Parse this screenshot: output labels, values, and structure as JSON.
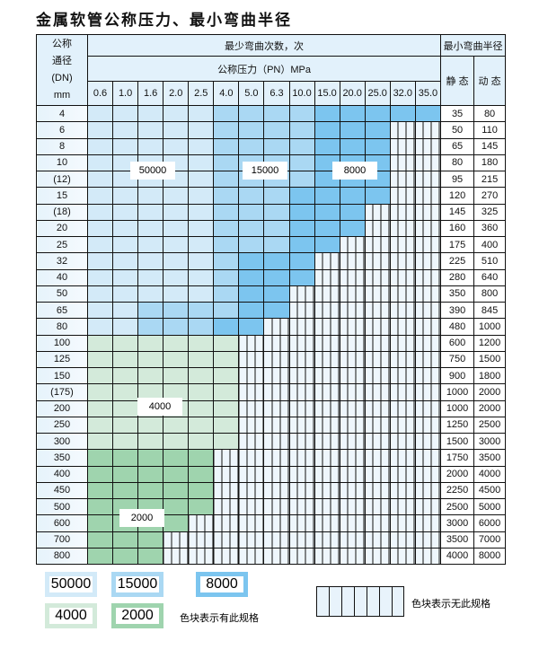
{
  "title": "金属软管公称压力、最小弯曲半径",
  "header": {
    "dn_label": [
      "公称",
      "通径",
      "(DN)",
      "mm"
    ],
    "cycles_label": "最少弯曲次数，次",
    "pressure_label": "公称压力（PN）MPa",
    "radius_label": "最小弯曲半径",
    "static_label": "静 态",
    "dynamic_label": "动 态",
    "pressures": [
      "0.6",
      "1.0",
      "1.6",
      "2.0",
      "2.5",
      "4.0",
      "5.0",
      "6.3",
      "10.0",
      "15.0",
      "20.0",
      "25.0",
      "32.0",
      "35.0"
    ]
  },
  "colors": {
    "A": "#d3eaf8",
    "B": "#aad8f3",
    "C": "#7cc5ef",
    "D": "#d3eada",
    "E": "#9fd4ae"
  },
  "cycle_codes": {
    "A": "50000",
    "B": "15000",
    "C": "8000",
    "D": "4000",
    "E": "2000",
    "X": "无此规格"
  },
  "rows": [
    {
      "dn": "4",
      "cells": "AAAAABBBBCCCCC",
      "static": "35",
      "dynamic": "80"
    },
    {
      "dn": "6",
      "cells": "AAAAABBBBCCCXX",
      "static": "50",
      "dynamic": "110"
    },
    {
      "dn": "8",
      "cells": "AAAAABBBBCCCXX",
      "static": "65",
      "dynamic": "145"
    },
    {
      "dn": "10",
      "cells": "AAAAABBBBCCCXX",
      "static": "80",
      "dynamic": "180"
    },
    {
      "dn": "(12)",
      "cells": "AAAAABBBBCCCXX",
      "static": "95",
      "dynamic": "215"
    },
    {
      "dn": "15",
      "cells": "AAAAABBBCCCCXX",
      "static": "120",
      "dynamic": "270"
    },
    {
      "dn": "(18)",
      "cells": "AAAAABBBCCCXXX",
      "static": "145",
      "dynamic": "325"
    },
    {
      "dn": "20",
      "cells": "AAAAABBBCCCXXX",
      "static": "160",
      "dynamic": "360"
    },
    {
      "dn": "25",
      "cells": "AAAAABBBCCXXXX",
      "static": "175",
      "dynamic": "400"
    },
    {
      "dn": "32",
      "cells": "AAAAABCCCXXXXX",
      "static": "225",
      "dynamic": "510"
    },
    {
      "dn": "40",
      "cells": "AAAAABCCCXXXXX",
      "static": "280",
      "dynamic": "640"
    },
    {
      "dn": "50",
      "cells": "AAAAABCCXXXXXX",
      "static": "350",
      "dynamic": "800"
    },
    {
      "dn": "65",
      "cells": "AABBBBCCXXXXXX",
      "static": "390",
      "dynamic": "845"
    },
    {
      "dn": "80",
      "cells": "AABBBCCXXXXXXX",
      "static": "480",
      "dynamic": "1000"
    },
    {
      "dn": "100",
      "cells": "DDDDDDXXXXXXXX",
      "static": "600",
      "dynamic": "1200"
    },
    {
      "dn": "125",
      "cells": "DDDDDDXXXXXXXX",
      "static": "750",
      "dynamic": "1500"
    },
    {
      "dn": "150",
      "cells": "DDDDDDXXXXXXXX",
      "static": "900",
      "dynamic": "1800"
    },
    {
      "dn": "(175)",
      "cells": "DDDDDDXXXXXXXX",
      "static": "1000",
      "dynamic": "2000"
    },
    {
      "dn": "200",
      "cells": "DDDDDDXXXXXXXX",
      "static": "1000",
      "dynamic": "2000"
    },
    {
      "dn": "250",
      "cells": "DDDDDDXXXXXXXX",
      "static": "1250",
      "dynamic": "2500"
    },
    {
      "dn": "300",
      "cells": "DDDDDDXXXXXXXX",
      "static": "1500",
      "dynamic": "3000"
    },
    {
      "dn": "350",
      "cells": "EEEEEXXXXXXXXX",
      "static": "1750",
      "dynamic": "3500"
    },
    {
      "dn": "400",
      "cells": "EEEEEXXXXXXXXX",
      "static": "2000",
      "dynamic": "4000"
    },
    {
      "dn": "450",
      "cells": "EEEEEXXXXXXXXX",
      "static": "2250",
      "dynamic": "4500"
    },
    {
      "dn": "500",
      "cells": "EEEEEXXXXXXXXX",
      "static": "2500",
      "dynamic": "5000"
    },
    {
      "dn": "600",
      "cells": "EEEEXXXXXXXXXX",
      "static": "3000",
      "dynamic": "6000"
    },
    {
      "dn": "700",
      "cells": "EEEXXXXXXXXXXX",
      "static": "3500",
      "dynamic": "7000"
    },
    {
      "dn": "800",
      "cells": "EEEXXXXXXXXXXX",
      "static": "4000",
      "dynamic": "8000"
    }
  ],
  "region_labels": {
    "a": "50000",
    "b": "15000",
    "c": "8000",
    "d": "4000",
    "e": "2000"
  },
  "legend": {
    "items": [
      "50000",
      "15000",
      "8000",
      "4000",
      "2000"
    ],
    "has_spec_text": "色块表示有此规格",
    "no_spec_text": "色块表示无此规格"
  }
}
